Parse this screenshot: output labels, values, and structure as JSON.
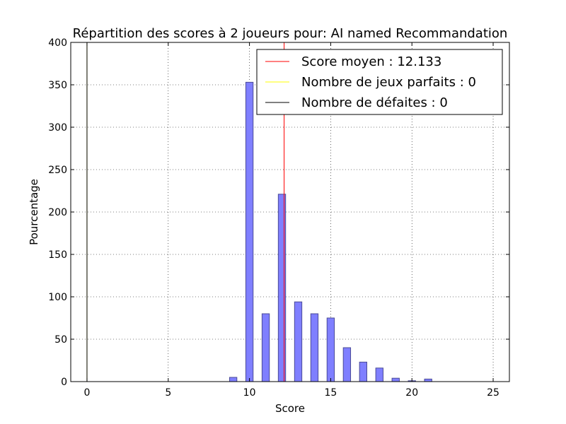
{
  "chart_data": {
    "type": "bar",
    "title": "Répartition des scores à 2 joueurs pour: AI named Recommandation",
    "xlabel": "Score",
    "ylabel": "Pourcentage",
    "xlim": [
      -1,
      26
    ],
    "ylim": [
      0,
      400
    ],
    "xticks": [
      0,
      5,
      10,
      15,
      20,
      25
    ],
    "yticks": [
      0,
      50,
      100,
      150,
      200,
      250,
      300,
      350,
      400
    ],
    "grid": true,
    "bar_color": "#7f7fff",
    "bar_edge_color": "#4b4b96",
    "x": [
      9,
      10,
      11,
      12,
      13,
      14,
      15,
      16,
      17,
      18,
      19,
      20,
      21
    ],
    "values": [
      5,
      353,
      80,
      221,
      94,
      80,
      75,
      40,
      23,
      16,
      4,
      1,
      3
    ],
    "lines": [
      {
        "label": "Score moyen : 12.133",
        "x": 12.133,
        "color": "#ff0000"
      },
      {
        "label": "Nombre de jeux parfaits : 0",
        "x": 0,
        "color": "#ffff00"
      },
      {
        "label": "Nombre de défaites : 0",
        "x": 0,
        "color": "#000000"
      }
    ],
    "legend_position": "top-right"
  }
}
